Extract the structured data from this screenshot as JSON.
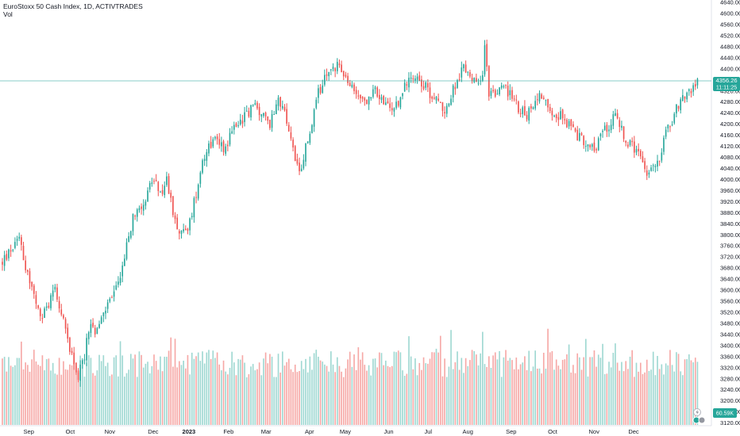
{
  "header": {
    "title": "EuroStoxx 50 Cash Index, 1D, ACTIVTRADES",
    "volume_label": "Vol"
  },
  "price_tag": {
    "value": "4356.26",
    "timer": "11:11:25",
    "color": "#26a69a"
  },
  "volume_tag": {
    "value": "60.59K",
    "color": "#26a69a"
  },
  "colors": {
    "up": "#26a69a",
    "down": "#ef5350",
    "up_vol": "#9fd8d2",
    "down_vol": "#f6a8a6",
    "last_line": "#26a69a"
  },
  "chart_data": {
    "type": "candlestick",
    "y_axis": {
      "range": [
        3110,
        4640
      ],
      "ticks": [
        "4640.00",
        "4600.00",
        "4560.00",
        "4520.00",
        "4480.00",
        "4440.00",
        "4400.00",
        "4360.00",
        "4320.00",
        "4280.00",
        "4240.00",
        "4200.00",
        "4160.00",
        "4120.00",
        "4080.00",
        "4040.00",
        "4000.00",
        "3960.00",
        "3920.00",
        "3880.00",
        "3840.00",
        "3800.00",
        "3760.00",
        "3720.00",
        "3680.00",
        "3640.00",
        "3600.00",
        "3560.00",
        "3520.00",
        "3480.00",
        "3440.00",
        "3400.00",
        "3360.00",
        "3320.00",
        "3280.00",
        "3240.00",
        "3200.00",
        "3160.00",
        "3120.00"
      ]
    },
    "x_axis": {
      "labels": [
        {
          "text": "Sep",
          "bold": false,
          "index": 14
        },
        {
          "text": "Oct",
          "bold": false,
          "index": 36
        },
        {
          "text": "Nov",
          "bold": false,
          "index": 57
        },
        {
          "text": "Dec",
          "bold": false,
          "index": 80
        },
        {
          "text": "2023",
          "bold": true,
          "index": 99
        },
        {
          "text": "Feb",
          "bold": false,
          "index": 120
        },
        {
          "text": "Mar",
          "bold": false,
          "index": 140
        },
        {
          "text": "Apr",
          "bold": false,
          "index": 163
        },
        {
          "text": "May",
          "bold": false,
          "index": 182
        },
        {
          "text": "Jun",
          "bold": false,
          "index": 205
        },
        {
          "text": "Jul",
          "bold": false,
          "index": 226
        },
        {
          "text": "Aug",
          "bold": false,
          "index": 247
        },
        {
          "text": "Sep",
          "bold": false,
          "index": 270
        },
        {
          "text": "Oct",
          "bold": false,
          "index": 292
        },
        {
          "text": "Nov",
          "bold": false,
          "index": 314
        },
        {
          "text": "Dec",
          "bold": false,
          "index": 335
        }
      ],
      "bars_visible": 331
    },
    "path_anchors": [
      [
        0,
        3700
      ],
      [
        5,
        3750
      ],
      [
        9,
        3810
      ],
      [
        12,
        3690
      ],
      [
        16,
        3600
      ],
      [
        20,
        3490
      ],
      [
        24,
        3540
      ],
      [
        28,
        3620
      ],
      [
        32,
        3490
      ],
      [
        36,
        3390
      ],
      [
        40,
        3290
      ],
      [
        43,
        3340
      ],
      [
        46,
        3470
      ],
      [
        50,
        3440
      ],
      [
        54,
        3530
      ],
      [
        58,
        3570
      ],
      [
        62,
        3640
      ],
      [
        66,
        3760
      ],
      [
        70,
        3880
      ],
      [
        75,
        3920
      ],
      [
        80,
        4000
      ],
      [
        84,
        3940
      ],
      [
        87,
        4000
      ],
      [
        91,
        3870
      ],
      [
        95,
        3800
      ],
      [
        99,
        3830
      ],
      [
        103,
        3960
      ],
      [
        106,
        4070
      ],
      [
        110,
        4130
      ],
      [
        114,
        4150
      ],
      [
        118,
        4110
      ],
      [
        122,
        4180
      ],
      [
        126,
        4210
      ],
      [
        130,
        4240
      ],
      [
        134,
        4270
      ],
      [
        138,
        4230
      ],
      [
        142,
        4200
      ],
      [
        146,
        4300
      ],
      [
        150,
        4230
      ],
      [
        153,
        4150
      ],
      [
        156,
        4060
      ],
      [
        158,
        4000
      ],
      [
        161,
        4120
      ],
      [
        164,
        4180
      ],
      [
        167,
        4300
      ],
      [
        170,
        4350
      ],
      [
        174,
        4390
      ],
      [
        178,
        4420
      ],
      [
        182,
        4360
      ],
      [
        186,
        4320
      ],
      [
        190,
        4300
      ],
      [
        194,
        4280
      ],
      [
        198,
        4320
      ],
      [
        202,
        4280
      ],
      [
        206,
        4250
      ],
      [
        210,
        4270
      ],
      [
        214,
        4350
      ],
      [
        218,
        4380
      ],
      [
        222,
        4360
      ],
      [
        226,
        4320
      ],
      [
        230,
        4290
      ],
      [
        234,
        4250
      ],
      [
        238,
        4290
      ],
      [
        240,
        4340
      ],
      [
        244,
        4400
      ],
      [
        248,
        4390
      ],
      [
        252,
        4330
      ],
      [
        255,
        4400
      ],
      [
        256,
        4480
      ],
      [
        258,
        4320
      ],
      [
        262,
        4300
      ],
      [
        266,
        4340
      ],
      [
        270,
        4300
      ],
      [
        274,
        4260
      ],
      [
        278,
        4230
      ],
      [
        282,
        4280
      ],
      [
        286,
        4310
      ],
      [
        290,
        4260
      ],
      [
        294,
        4240
      ],
      [
        298,
        4220
      ],
      [
        302,
        4180
      ],
      [
        306,
        4150
      ],
      [
        310,
        4140
      ],
      [
        314,
        4100
      ],
      [
        318,
        4170
      ],
      [
        322,
        4200
      ],
      [
        324,
        4230
      ],
      [
        328,
        4200
      ],
      [
        331,
        4130
      ],
      [
        334,
        4120
      ],
      [
        338,
        4080
      ],
      [
        342,
        4020
      ],
      [
        346,
        4040
      ],
      [
        349,
        4090
      ],
      [
        352,
        4180
      ],
      [
        355,
        4200
      ],
      [
        358,
        4260
      ],
      [
        362,
        4300
      ],
      [
        366,
        4330
      ],
      [
        370,
        4356
      ]
    ],
    "last_price": 4356.26,
    "volume_last": "60.59K"
  }
}
